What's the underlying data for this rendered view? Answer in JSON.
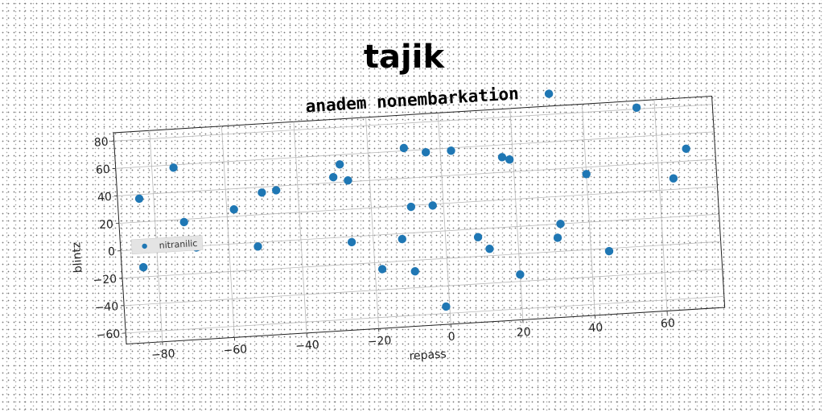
{
  "chart_data": {
    "type": "scatter",
    "title": "tajik",
    "subtitle": "anadem nonembarkation",
    "xlabel": "repass",
    "ylabel": "blintz",
    "xlim": [
      -90,
      76
    ],
    "ylim": [
      -68,
      86
    ],
    "xticks": [
      -80,
      -60,
      -40,
      -20,
      0,
      20,
      40,
      60
    ],
    "yticks": [
      -60,
      -40,
      -20,
      0,
      20,
      40,
      60,
      80
    ],
    "xtick_labels": [
      "−80",
      "−60",
      "−40",
      "−20",
      "0",
      "20",
      "40",
      "60"
    ],
    "ytick_labels": [
      "−60",
      "−40",
      "−20",
      "0",
      "20",
      "40",
      "60",
      "80"
    ],
    "grid": true,
    "legend_position": "center-left",
    "series": [
      {
        "name": "nitranilic",
        "color": "#1f77b4",
        "points": [
          [
            -84,
            37
          ],
          [
            -84,
            -13
          ],
          [
            -74,
            58
          ],
          [
            -72,
            18
          ],
          [
            -69,
            -1
          ],
          [
            -58,
            25
          ],
          [
            -52,
            -3
          ],
          [
            -50,
            36
          ],
          [
            -46,
            37
          ],
          [
            -30,
            44
          ],
          [
            -28,
            53
          ],
          [
            -26,
            41
          ],
          [
            -26,
            -4
          ],
          [
            -18,
            -25
          ],
          [
            -12,
            -4
          ],
          [
            -10,
            62
          ],
          [
            -9,
            19
          ],
          [
            -9,
            -28
          ],
          [
            -4,
            58
          ],
          [
            -3,
            19
          ],
          [
            3,
            58
          ],
          [
            -1,
            -55
          ],
          [
            9,
            -6
          ],
          [
            12,
            -15
          ],
          [
            17,
            51
          ],
          [
            19,
            49
          ],
          [
            20,
            -35
          ],
          [
            31,
            95
          ],
          [
            32,
            0
          ],
          [
            31,
            -10
          ],
          [
            40,
            35
          ],
          [
            45,
            -22
          ],
          [
            55,
            81
          ],
          [
            64,
            28
          ],
          [
            68,
            49
          ]
        ]
      }
    ]
  }
}
